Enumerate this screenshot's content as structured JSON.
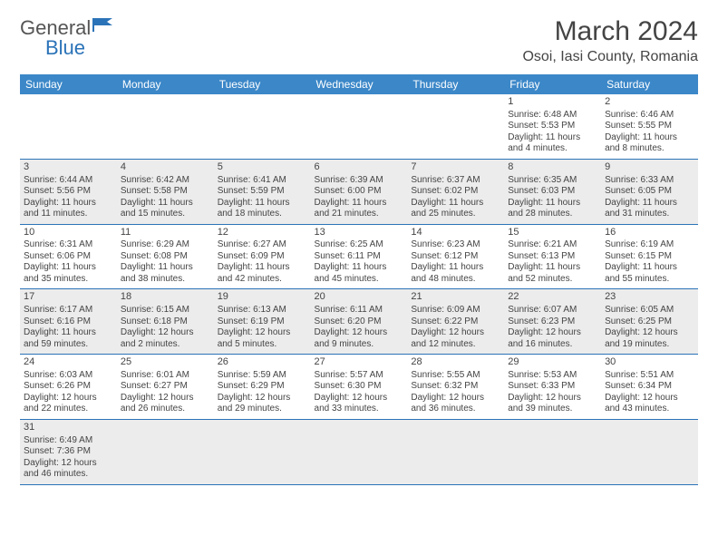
{
  "logo": {
    "text1": "General",
    "text2": "Blue"
  },
  "title": "March 2024",
  "location": "Osoi, Iasi County, Romania",
  "colors": {
    "header_bg": "#3b87c8",
    "header_text": "#ffffff",
    "row_alt_bg": "#ececec",
    "border": "#2b73b8",
    "text": "#444444",
    "logo_accent": "#2b73b8"
  },
  "day_headers": [
    "Sunday",
    "Monday",
    "Tuesday",
    "Wednesday",
    "Thursday",
    "Friday",
    "Saturday"
  ],
  "weeks": [
    {
      "alt": false,
      "days": [
        null,
        null,
        null,
        null,
        null,
        {
          "n": "1",
          "sunrise": "6:48 AM",
          "sunset": "5:53 PM",
          "daylight": "11 hours and 4 minutes."
        },
        {
          "n": "2",
          "sunrise": "6:46 AM",
          "sunset": "5:55 PM",
          "daylight": "11 hours and 8 minutes."
        }
      ]
    },
    {
      "alt": true,
      "days": [
        {
          "n": "3",
          "sunrise": "6:44 AM",
          "sunset": "5:56 PM",
          "daylight": "11 hours and 11 minutes."
        },
        {
          "n": "4",
          "sunrise": "6:42 AM",
          "sunset": "5:58 PM",
          "daylight": "11 hours and 15 minutes."
        },
        {
          "n": "5",
          "sunrise": "6:41 AM",
          "sunset": "5:59 PM",
          "daylight": "11 hours and 18 minutes."
        },
        {
          "n": "6",
          "sunrise": "6:39 AM",
          "sunset": "6:00 PM",
          "daylight": "11 hours and 21 minutes."
        },
        {
          "n": "7",
          "sunrise": "6:37 AM",
          "sunset": "6:02 PM",
          "daylight": "11 hours and 25 minutes."
        },
        {
          "n": "8",
          "sunrise": "6:35 AM",
          "sunset": "6:03 PM",
          "daylight": "11 hours and 28 minutes."
        },
        {
          "n": "9",
          "sunrise": "6:33 AM",
          "sunset": "6:05 PM",
          "daylight": "11 hours and 31 minutes."
        }
      ]
    },
    {
      "alt": false,
      "days": [
        {
          "n": "10",
          "sunrise": "6:31 AM",
          "sunset": "6:06 PM",
          "daylight": "11 hours and 35 minutes."
        },
        {
          "n": "11",
          "sunrise": "6:29 AM",
          "sunset": "6:08 PM",
          "daylight": "11 hours and 38 minutes."
        },
        {
          "n": "12",
          "sunrise": "6:27 AM",
          "sunset": "6:09 PM",
          "daylight": "11 hours and 42 minutes."
        },
        {
          "n": "13",
          "sunrise": "6:25 AM",
          "sunset": "6:11 PM",
          "daylight": "11 hours and 45 minutes."
        },
        {
          "n": "14",
          "sunrise": "6:23 AM",
          "sunset": "6:12 PM",
          "daylight": "11 hours and 48 minutes."
        },
        {
          "n": "15",
          "sunrise": "6:21 AM",
          "sunset": "6:13 PM",
          "daylight": "11 hours and 52 minutes."
        },
        {
          "n": "16",
          "sunrise": "6:19 AM",
          "sunset": "6:15 PM",
          "daylight": "11 hours and 55 minutes."
        }
      ]
    },
    {
      "alt": true,
      "days": [
        {
          "n": "17",
          "sunrise": "6:17 AM",
          "sunset": "6:16 PM",
          "daylight": "11 hours and 59 minutes."
        },
        {
          "n": "18",
          "sunrise": "6:15 AM",
          "sunset": "6:18 PM",
          "daylight": "12 hours and 2 minutes."
        },
        {
          "n": "19",
          "sunrise": "6:13 AM",
          "sunset": "6:19 PM",
          "daylight": "12 hours and 5 minutes."
        },
        {
          "n": "20",
          "sunrise": "6:11 AM",
          "sunset": "6:20 PM",
          "daylight": "12 hours and 9 minutes."
        },
        {
          "n": "21",
          "sunrise": "6:09 AM",
          "sunset": "6:22 PM",
          "daylight": "12 hours and 12 minutes."
        },
        {
          "n": "22",
          "sunrise": "6:07 AM",
          "sunset": "6:23 PM",
          "daylight": "12 hours and 16 minutes."
        },
        {
          "n": "23",
          "sunrise": "6:05 AM",
          "sunset": "6:25 PM",
          "daylight": "12 hours and 19 minutes."
        }
      ]
    },
    {
      "alt": false,
      "days": [
        {
          "n": "24",
          "sunrise": "6:03 AM",
          "sunset": "6:26 PM",
          "daylight": "12 hours and 22 minutes."
        },
        {
          "n": "25",
          "sunrise": "6:01 AM",
          "sunset": "6:27 PM",
          "daylight": "12 hours and 26 minutes."
        },
        {
          "n": "26",
          "sunrise": "5:59 AM",
          "sunset": "6:29 PM",
          "daylight": "12 hours and 29 minutes."
        },
        {
          "n": "27",
          "sunrise": "5:57 AM",
          "sunset": "6:30 PM",
          "daylight": "12 hours and 33 minutes."
        },
        {
          "n": "28",
          "sunrise": "5:55 AM",
          "sunset": "6:32 PM",
          "daylight": "12 hours and 36 minutes."
        },
        {
          "n": "29",
          "sunrise": "5:53 AM",
          "sunset": "6:33 PM",
          "daylight": "12 hours and 39 minutes."
        },
        {
          "n": "30",
          "sunrise": "5:51 AM",
          "sunset": "6:34 PM",
          "daylight": "12 hours and 43 minutes."
        }
      ]
    },
    {
      "alt": true,
      "days": [
        {
          "n": "31",
          "sunrise": "6:49 AM",
          "sunset": "7:36 PM",
          "daylight": "12 hours and 46 minutes."
        },
        null,
        null,
        null,
        null,
        null,
        null
      ]
    }
  ],
  "labels": {
    "sunrise": "Sunrise:",
    "sunset": "Sunset:",
    "daylight": "Daylight:"
  }
}
